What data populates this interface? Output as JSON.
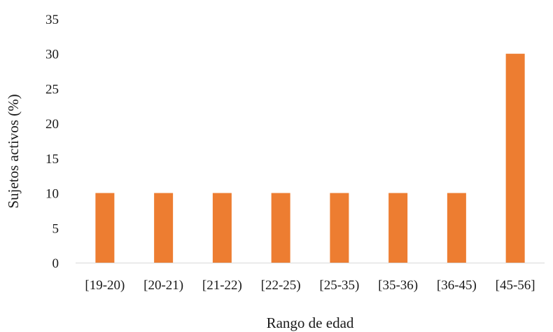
{
  "chart_data": {
    "type": "bar",
    "title": "",
    "xlabel": "Rango de edad",
    "ylabel": "Sujetos activos (%)",
    "categories": [
      "[19-20)",
      "[20-21)",
      "[21-22)",
      "[22-25)",
      "[25-35)",
      "[35-36)",
      "[36-45)",
      "[45-56]"
    ],
    "series": [
      {
        "values": [
          10,
          10,
          10,
          10,
          10,
          10,
          10,
          30
        ],
        "color": "#ED7D31"
      }
    ],
    "ylim": [
      0,
      35
    ],
    "yticks": [
      0,
      5,
      10,
      15,
      20,
      25,
      30,
      35
    ],
    "grid": false,
    "legend": "none",
    "axis_color": "#d9d9d9"
  }
}
